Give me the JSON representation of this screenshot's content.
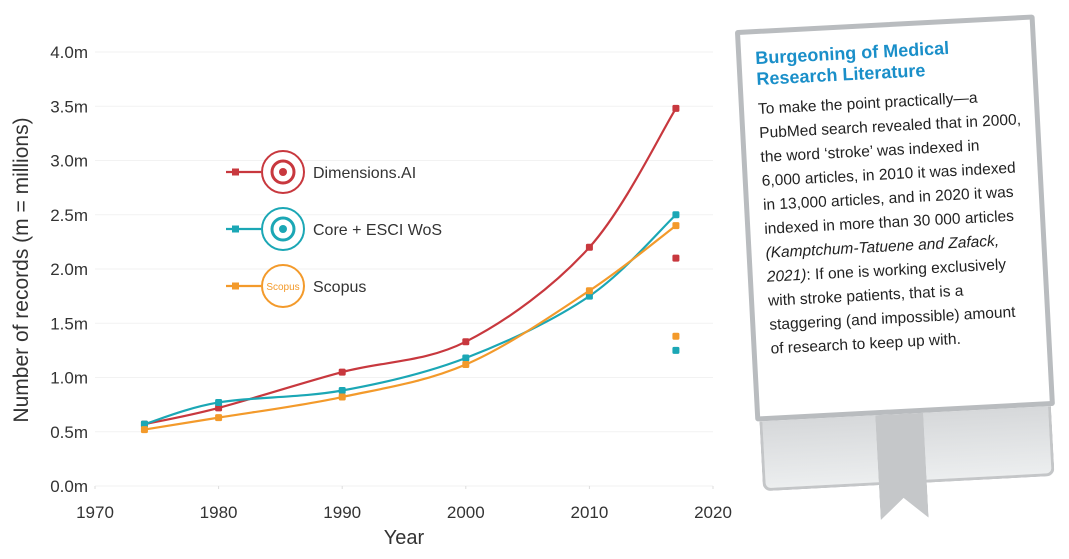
{
  "chart_data": {
    "type": "line",
    "xlabel": "Year",
    "ylabel": "Number of records (m = millions)",
    "xlim": [
      1970,
      2020
    ],
    "xticks": [
      1970,
      1980,
      1990,
      2000,
      2010,
      2020
    ],
    "ylim": [
      0,
      4.0
    ],
    "yticks": [
      {
        "value": 0,
        "label": "0.0m"
      },
      {
        "value": 0.5,
        "label": "0.5m"
      },
      {
        "value": 1.0,
        "label": "1.0m"
      },
      {
        "value": 1.5,
        "label": "1.5m"
      },
      {
        "value": 2.0,
        "label": "2.0m"
      },
      {
        "value": 2.5,
        "label": "2.5m"
      },
      {
        "value": 3.0,
        "label": "3.0m"
      },
      {
        "value": 3.5,
        "label": "3.5m"
      },
      {
        "value": 4.0,
        "label": "4.0m"
      }
    ],
    "series": [
      {
        "name": "Dimensions.AI",
        "color": "#c8383e",
        "x": [
          1974,
          1980,
          1990,
          2000,
          2010,
          2017
        ],
        "values": [
          0.57,
          0.72,
          1.05,
          1.33,
          2.2,
          3.48
        ],
        "separate_point": {
          "x": 2017,
          "value": 2.1
        }
      },
      {
        "name": "Core + ESCI WoS",
        "color": "#1ba7b5",
        "x": [
          1974,
          1980,
          1990,
          2000,
          2010,
          2017
        ],
        "values": [
          0.57,
          0.77,
          0.88,
          1.18,
          1.75,
          2.5
        ],
        "separate_point": {
          "x": 2017,
          "value": 1.25
        }
      },
      {
        "name": "Scopus",
        "color": "#f39a2b",
        "x": [
          1974,
          1980,
          1990,
          2000,
          2010,
          2017
        ],
        "values": [
          0.52,
          0.63,
          0.82,
          1.12,
          1.8,
          2.4
        ],
        "separate_point": {
          "x": 2017,
          "value": 1.38
        }
      }
    ]
  },
  "sidebar": {
    "title": "Burgeoning of Medical Research Literature",
    "text_before": "To make the point practically—a PubMed search revealed that in 2000, the word ‘stroke’ was indexed in 6,000 articles, in 2010 it was indexed in 13,000 articles, and in 2020 it was indexed in more than 30 000 articles ",
    "citation": "(Kamptchum-Tatuene and Zafack, 2021)",
    "text_after": ": If one is working exclusively with stroke patients, that is a staggering (and impossible) amount of research to keep up with."
  }
}
